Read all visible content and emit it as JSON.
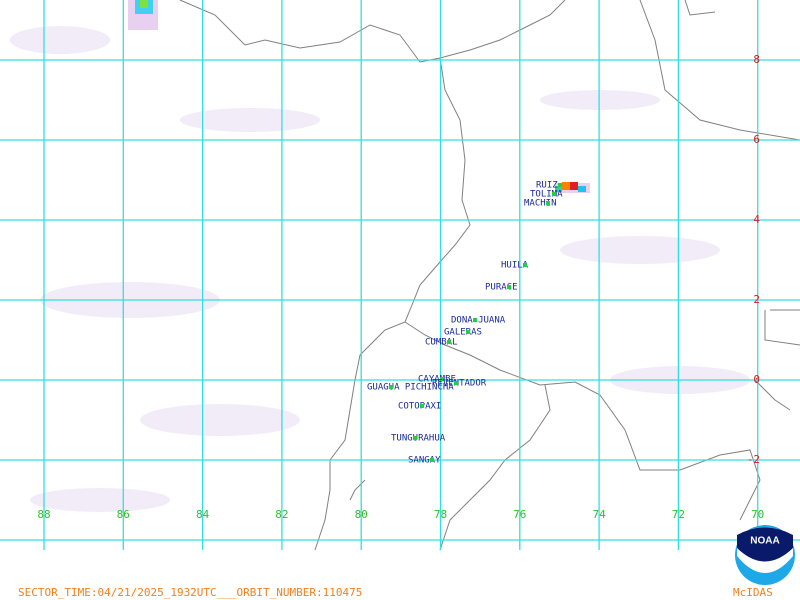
{
  "map": {
    "lon_labels": [
      88,
      86,
      84,
      82,
      80,
      78,
      76,
      74,
      72,
      70
    ],
    "lat_labels": [
      8,
      6,
      4,
      2,
      0,
      -2
    ],
    "volcanoes": [
      {
        "name": "RUIZ"
      },
      {
        "name": "TOLIMA"
      },
      {
        "name": "MACHIN"
      },
      {
        "name": "HUILA"
      },
      {
        "name": "PURACE"
      },
      {
        "name": "DONA JUANA"
      },
      {
        "name": "GALERAS"
      },
      {
        "name": "CUMBAL"
      },
      {
        "name": "CAYAMBE"
      },
      {
        "name": "REVENTADOR"
      },
      {
        "name": "GUAGUA PICHINCHA"
      },
      {
        "name": "COTOPAXI"
      },
      {
        "name": "TUNGURAHUA"
      },
      {
        "name": "SANGAY"
      }
    ],
    "footer": "SECTOR_TIME:04/21/2025_1932UTC___ORBIT_NUMBER:110475",
    "logo": "NOAA",
    "software": "McIDAS"
  }
}
